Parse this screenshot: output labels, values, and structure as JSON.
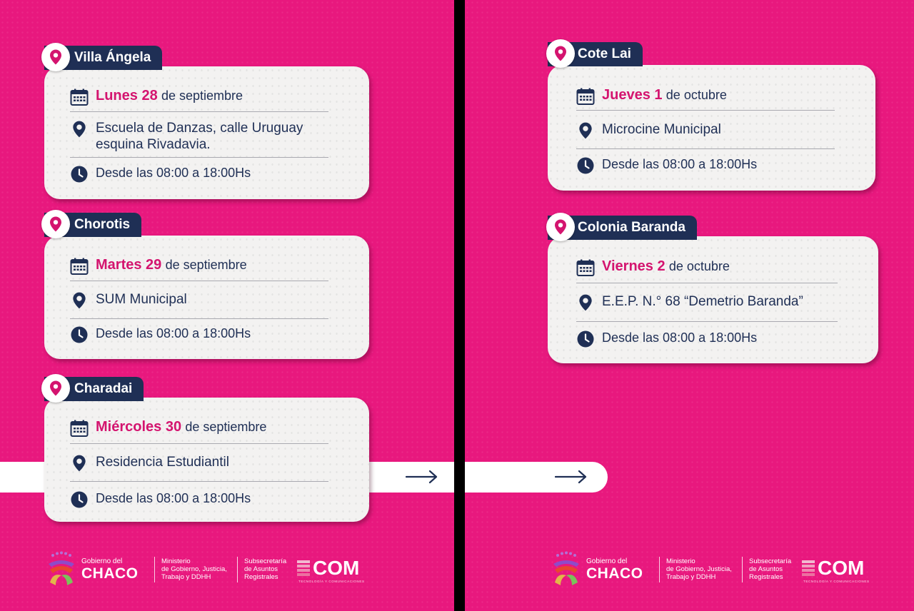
{
  "left_panel": {
    "events": [
      {
        "town": "Villa Ángela",
        "day": "Lunes 28",
        "month": "de septiembre",
        "place_lines": [
          "Escuela de Danzas, calle Uruguay",
          "esquina Rivadavia."
        ],
        "hours": "Desde las 08:00 a 18:00Hs"
      },
      {
        "town": "Chorotis",
        "day": "Martes 29",
        "month": "de septiembre",
        "place_lines": [
          "SUM Municipal"
        ],
        "hours": "Desde las 08:00 a 18:00Hs"
      },
      {
        "town": "Charadai",
        "day": "Miércoles 30",
        "month": "de septiembre",
        "place_lines": [
          "Residencia Estudiantil"
        ],
        "hours": "Desde las 08:00 a 18:00Hs"
      }
    ]
  },
  "right_panel": {
    "events": [
      {
        "town": "Cote Lai",
        "day": "Jueves 1",
        "month": "de octubre",
        "place_lines": [
          "Microcine Municipal"
        ],
        "hours": "Desde las 08:00 a 18:00Hs"
      },
      {
        "town": "Colonia Baranda",
        "day": "Viernes 2",
        "month": "de octubre",
        "place_lines": [
          "E.E.P. N.° 68 “Demetrio Baranda”"
        ],
        "hours": "Desde las 08:00 a 18:00Hs"
      }
    ]
  },
  "footer": {
    "gobierno_small": "Gobierno del",
    "gobierno_big": "CHACO",
    "ministerio_lines": [
      "Ministerio",
      "de Gobierno, Justicia,",
      "Trabajo y DDHH"
    ],
    "subsecretaria_lines": [
      "Subsecretaría",
      "de Asuntos",
      "Registrales"
    ],
    "com_logo": "COM",
    "com_subtitle": "TECNOLOGÍA Y COMUNICACIONES"
  },
  "colors": {
    "background": "#e8187e",
    "navy": "#1f2f55",
    "accent": "#d4146f",
    "card": "#f3f2f1"
  },
  "icons": [
    "location-pin-icon",
    "calendar-icon",
    "clock-icon",
    "arrow-right-icon"
  ]
}
